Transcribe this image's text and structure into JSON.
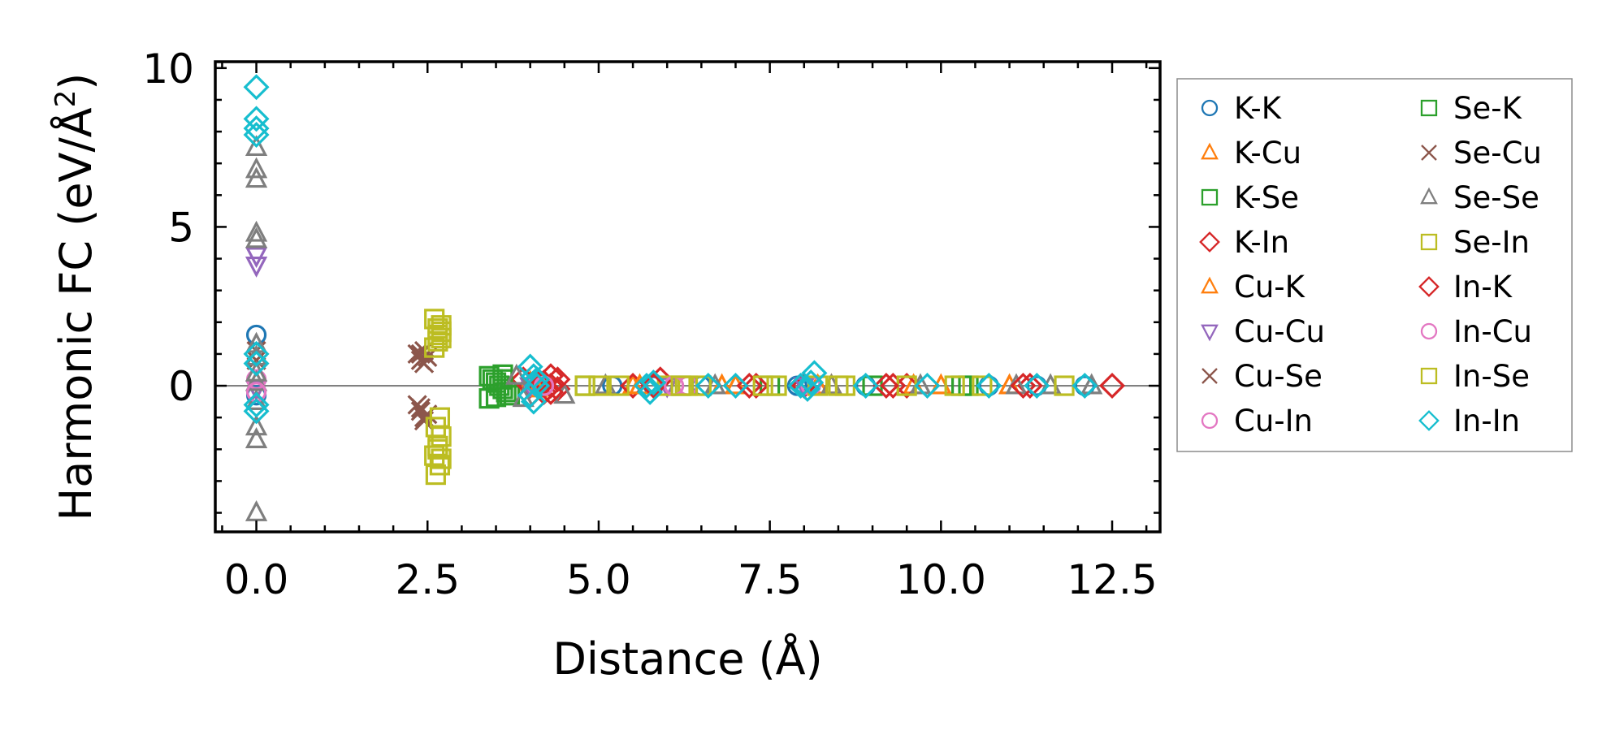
{
  "chart_data": {
    "type": "scatter",
    "title": "",
    "xlabel": "Distance (Å)",
    "ylabel": "Harmonic FC (eV/Å",
    "ylabel_superscript": "2",
    "ylabel_close": ")",
    "xlim": [
      -0.6,
      13.2
    ],
    "ylim": [
      -4.6,
      10.2
    ],
    "xticks": [
      0.0,
      2.5,
      5.0,
      7.5,
      10.0,
      12.5
    ],
    "xtick_labels": [
      "0.0",
      "2.5",
      "5.0",
      "7.5",
      "10.0",
      "12.5"
    ],
    "yticks": [
      0,
      5,
      10
    ],
    "ytick_labels": [
      "0",
      "5",
      "10"
    ],
    "zero_line": true,
    "legend_position": "outside-right",
    "series": [
      {
        "name": "K-K",
        "marker": "circle",
        "color": "#1f77b4",
        "x": [
          0,
          0,
          5.2,
          5.8,
          6.5,
          7.9,
          8.9,
          10.7,
          11.4,
          12.1
        ],
        "y": [
          1.6,
          -0.3,
          0.0,
          0.0,
          0.0,
          0.0,
          0.0,
          0.0,
          0.0,
          0.0
        ]
      },
      {
        "name": "K-Cu",
        "marker": "triangle-up",
        "color": "#ff7f0e",
        "x": [
          4.0,
          5.5,
          6.8,
          8.2,
          9.6,
          11.0
        ],
        "y": [
          0.1,
          0.0,
          0.0,
          0.0,
          0.0,
          0.0
        ]
      },
      {
        "name": "K-Se",
        "marker": "square",
        "color": "#2ca02c",
        "x": [
          3.4,
          3.5,
          3.6,
          3.7,
          3.4,
          3.6,
          4.8,
          6.2,
          7.5,
          9.0,
          10.4
        ],
        "y": [
          0.3,
          0.1,
          -0.1,
          -0.3,
          -0.4,
          0.2,
          0.0,
          0.0,
          0.0,
          0.0,
          0.0
        ]
      },
      {
        "name": "K-In",
        "marker": "diamond",
        "color": "#d62728",
        "x": [
          3.9,
          4.0,
          4.1,
          4.2,
          4.3,
          4.4,
          4.0,
          4.3,
          5.5,
          5.9,
          7.3,
          8.0,
          9.3,
          9.5,
          11.3,
          12.5
        ],
        "y": [
          0.2,
          -0.3,
          0.1,
          -0.2,
          0.3,
          -0.1,
          0.0,
          0.0,
          0.0,
          0.2,
          0.0,
          0.0,
          0.0,
          0.0,
          0.0,
          0.0
        ]
      },
      {
        "name": "Cu-K",
        "marker": "triangle-up",
        "color": "#ff7f0e",
        "x": [
          4.1,
          5.6,
          7.0,
          8.4,
          10.0
        ],
        "y": [
          -0.1,
          0.0,
          0.0,
          0.0,
          0.0
        ]
      },
      {
        "name": "Cu-Cu",
        "marker": "triangle-down",
        "color": "#9467bd",
        "x": [
          0,
          0,
          0,
          4.0,
          6.0,
          8.0
        ],
        "y": [
          4.1,
          3.8,
          -0.1,
          0.0,
          0.0,
          0.0
        ]
      },
      {
        "name": "Cu-Se",
        "marker": "x",
        "color": "#8c564b",
        "x": [
          2.35,
          2.4,
          2.45,
          2.5,
          2.35,
          2.4,
          2.45,
          2.5,
          0,
          0
        ],
        "y": [
          1.0,
          0.8,
          1.1,
          0.9,
          -0.6,
          -0.8,
          -1.1,
          -0.9,
          0.8,
          1.1
        ]
      },
      {
        "name": "Cu-In",
        "marker": "circle",
        "color": "#e377c2",
        "x": [
          0,
          4.1,
          6.3,
          8.1
        ],
        "y": [
          0.2,
          0.0,
          0.0,
          0.0
        ]
      },
      {
        "name": "Se-K",
        "marker": "square",
        "color": "#2ca02c",
        "x": [
          3.45,
          3.55,
          3.65,
          3.5,
          3.6,
          10.3
        ],
        "y": [
          0.2,
          0.0,
          -0.2,
          -0.35,
          0.35,
          0.0
        ]
      },
      {
        "name": "Se-Cu",
        "marker": "x",
        "color": "#8c564b",
        "x": [
          2.4,
          2.45,
          2.4,
          2.45
        ],
        "y": [
          1.0,
          0.7,
          -0.7,
          -1.0
        ]
      },
      {
        "name": "Se-Se",
        "marker": "triangle-up",
        "color": "#7f7f7f",
        "x": [
          0,
          0,
          0,
          0,
          0,
          0,
          0,
          0,
          0,
          0,
          0,
          0,
          0,
          3.8,
          3.9,
          4.5,
          5.1,
          6.7,
          8.4,
          9.7,
          11.1,
          11.6,
          12.2
        ],
        "y": [
          7.5,
          6.8,
          6.5,
          4.8,
          4.6,
          1.3,
          0.9,
          0.4,
          -0.5,
          -1.3,
          -1.7,
          -4.0,
          0.1,
          0.3,
          -0.4,
          -0.3,
          0.0,
          0.0,
          0.0,
          0.0,
          0.0,
          0.0,
          0.0
        ]
      },
      {
        "name": "Se-In",
        "marker": "square",
        "color": "#bcbd22",
        "x": [
          2.6,
          2.65,
          2.7,
          2.6,
          2.65,
          2.7,
          2.62,
          2.68,
          2.6,
          2.65,
          2.7,
          2.62,
          2.68,
          4.8,
          5.0,
          6.0,
          6.3,
          6.5,
          7.6,
          8.2,
          8.6,
          9.5,
          10.2,
          11.8
        ],
        "y": [
          2.1,
          1.8,
          1.5,
          1.2,
          1.6,
          1.9,
          -2.8,
          -2.5,
          -2.2,
          -1.9,
          -1.6,
          -1.3,
          -1.0,
          0.0,
          0.0,
          0.0,
          0.0,
          0.0,
          0.0,
          0.0,
          0.0,
          0.0,
          0.0,
          0.0
        ]
      },
      {
        "name": "In-K",
        "marker": "diamond",
        "color": "#d62728",
        "x": [
          4.2,
          4.3,
          4.4,
          5.8,
          7.2,
          9.2,
          11.2
        ],
        "y": [
          0.1,
          -0.2,
          0.2,
          0.0,
          0.0,
          0.0,
          0.0
        ]
      },
      {
        "name": "In-Cu",
        "marker": "circle",
        "color": "#e377c2",
        "x": [
          0,
          4.2,
          6.1
        ],
        "y": [
          -0.2,
          0.0,
          0.0
        ]
      },
      {
        "name": "In-Se",
        "marker": "square",
        "color": "#bcbd22",
        "x": [
          2.65,
          2.7,
          2.65,
          2.7,
          5.3,
          6.2,
          7.4,
          8.5,
          10.6
        ],
        "y": [
          1.4,
          1.7,
          -2.0,
          -2.3,
          0.0,
          0.0,
          0.0,
          0.0,
          0.0
        ]
      },
      {
        "name": "In-In",
        "marker": "diamond",
        "color": "#17becf",
        "x": [
          0,
          0,
          0,
          0,
          0,
          0,
          0,
          0,
          4.0,
          4.05,
          4.1,
          4.0,
          4.05,
          4.1,
          5.7,
          5.75,
          5.8,
          6.6,
          7.0,
          7.95,
          8.05,
          8.1,
          8.15,
          8.9,
          9.8,
          10.7,
          11.4,
          12.1
        ],
        "y": [
          9.4,
          8.4,
          8.1,
          7.9,
          1.0,
          0.7,
          -0.6,
          -0.8,
          0.6,
          0.3,
          0.0,
          -0.3,
          -0.5,
          0.2,
          0.0,
          -0.2,
          0.1,
          0.0,
          0.0,
          0.0,
          -0.1,
          0.1,
          0.4,
          0.0,
          0.0,
          0.0,
          0.0,
          0.0
        ]
      }
    ]
  }
}
